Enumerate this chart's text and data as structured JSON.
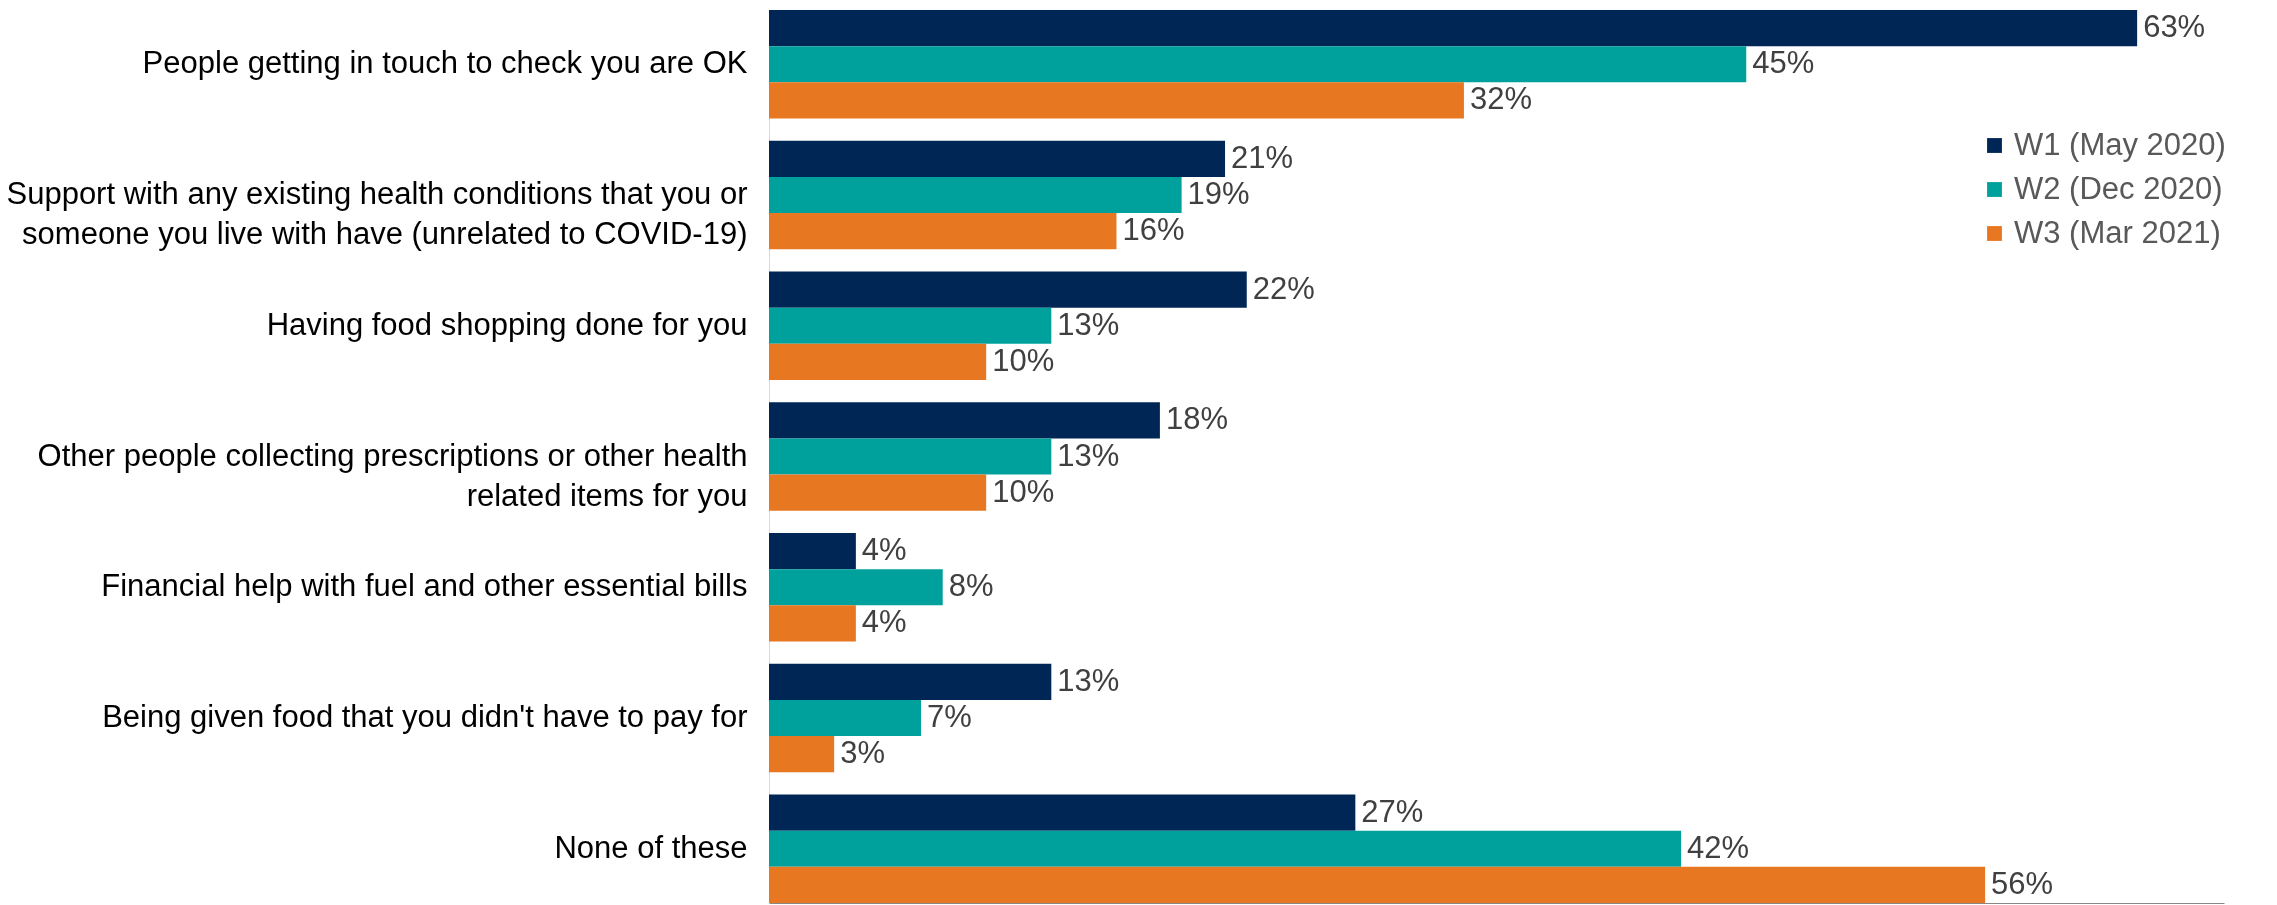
{
  "chart_data": {
    "type": "bar",
    "orientation": "horizontal",
    "categories": [
      "People getting in touch to check you are OK",
      "Support with any existing health conditions that you or\nsomeone you live with have (unrelated to COVID-19)",
      "Having food shopping done for you",
      "Other people collecting prescriptions or other health\nrelated items for you",
      "Financial help with fuel and other essential bills",
      "Being given food that you didn't have to pay for",
      "None of these"
    ],
    "series": [
      {
        "name": "W1 (May 2020)",
        "color": "#002655",
        "values": [
          63,
          21,
          22,
          18,
          4,
          13,
          27
        ],
        "value_labels": [
          "63%",
          "21%",
          "22%",
          "18%",
          "4%",
          "13%",
          "27%"
        ]
      },
      {
        "name": "W2 (Dec 2020)",
        "color": "#00a19c",
        "values": [
          45,
          19,
          13,
          13,
          8,
          7,
          42
        ],
        "value_labels": [
          "45%",
          "19%",
          "13%",
          "13%",
          "8%",
          "7%",
          "42%"
        ]
      },
      {
        "name": "W3 (Mar 2021)",
        "color": "#e87722",
        "values": [
          32,
          16,
          10,
          10,
          4,
          3,
          56
        ],
        "value_labels": [
          "32%",
          "16%",
          "10%",
          "10%",
          "4%",
          "3%",
          "56%"
        ]
      }
    ],
    "relative": false,
    "xlim": [
      0,
      67
    ],
    "legend": "top right",
    "grid": false
  }
}
